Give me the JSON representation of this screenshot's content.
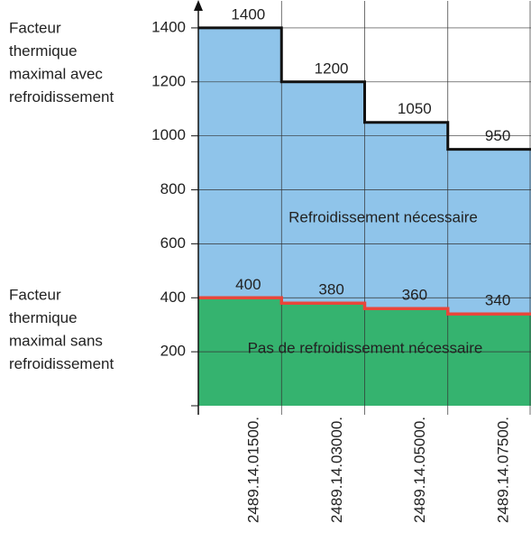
{
  "chart_data": {
    "type": "step",
    "categories": [
      "2489.14.01500.",
      "2489.14.03000.",
      "2489.14.05000.",
      "2489.14.07500."
    ],
    "series": [
      {
        "name": "Facteur thermique maximal avec refroidissement",
        "color": "#111111",
        "values": [
          1400,
          1200,
          1050,
          950
        ]
      },
      {
        "name": "Facteur thermique maximal sans refroidissement",
        "color": "#e8463a",
        "values": [
          400,
          380,
          360,
          340
        ]
      }
    ],
    "area_labels": [
      "Refroidissement nécessaire",
      "Pas de refroidissement nécessaire"
    ],
    "area_colors": [
      "#8fc4ea",
      "#35b36f"
    ],
    "annotations": [
      [
        "Facteur",
        "thermique",
        "maximal avec",
        "refroidissement"
      ],
      [
        "Facteur",
        "thermique",
        "maximal sans",
        "refroidissement"
      ]
    ],
    "ylim": [
      0,
      1500
    ],
    "yticks": [
      200,
      400,
      600,
      800,
      1000,
      1200,
      1400
    ],
    "grid": true
  }
}
